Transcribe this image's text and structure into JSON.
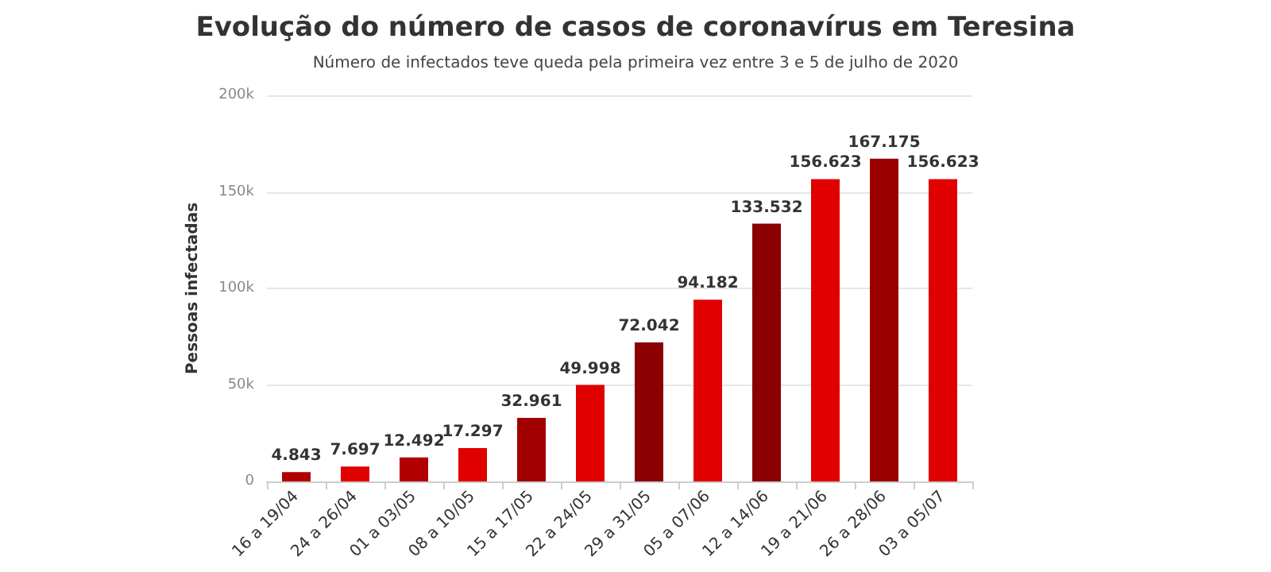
{
  "chart_data": {
    "type": "bar",
    "title": "Evolução do número de casos de coronavírus em Teresina",
    "subtitle": "Número de infectados teve queda pela primeira vez entre 3 e 5 de julho de 2020",
    "ylabel": "Pessoas infectadas",
    "categories": [
      "16 a 19/04",
      "24 a 26/04",
      "01 a 03/05",
      "08 a 10/05",
      "15 a 17/05",
      "22 a 24/05",
      "29 a 31/05",
      "05 a 07/06",
      "12 a 14/06",
      "19 a 21/06",
      "26 a 28/06",
      "03 a 05/07"
    ],
    "values": [
      4843,
      7697,
      12492,
      17297,
      32961,
      49998,
      72042,
      94182,
      133532,
      156623,
      167175,
      156623
    ],
    "value_labels": [
      "4.843",
      "7.697",
      "12.492",
      "17.297",
      "32.961",
      "49.998",
      "72.042",
      "94.182",
      "133.532",
      "156.623",
      "167.175",
      "156.623"
    ],
    "colors": [
      "#b00000",
      "#e00000",
      "#b00000",
      "#e00000",
      "#a00000",
      "#e00000",
      "#8b0000",
      "#e00000",
      "#8b0000",
      "#e00000",
      "#990000",
      "#e00000"
    ],
    "ylim": [
      0,
      200000
    ],
    "yticks": [
      {
        "value": 0,
        "label": "0"
      },
      {
        "value": 50000,
        "label": "50k"
      },
      {
        "value": 100000,
        "label": "100k"
      },
      {
        "value": 150000,
        "label": "150k"
      },
      {
        "value": 200000,
        "label": "200k"
      }
    ],
    "grid": "y"
  }
}
